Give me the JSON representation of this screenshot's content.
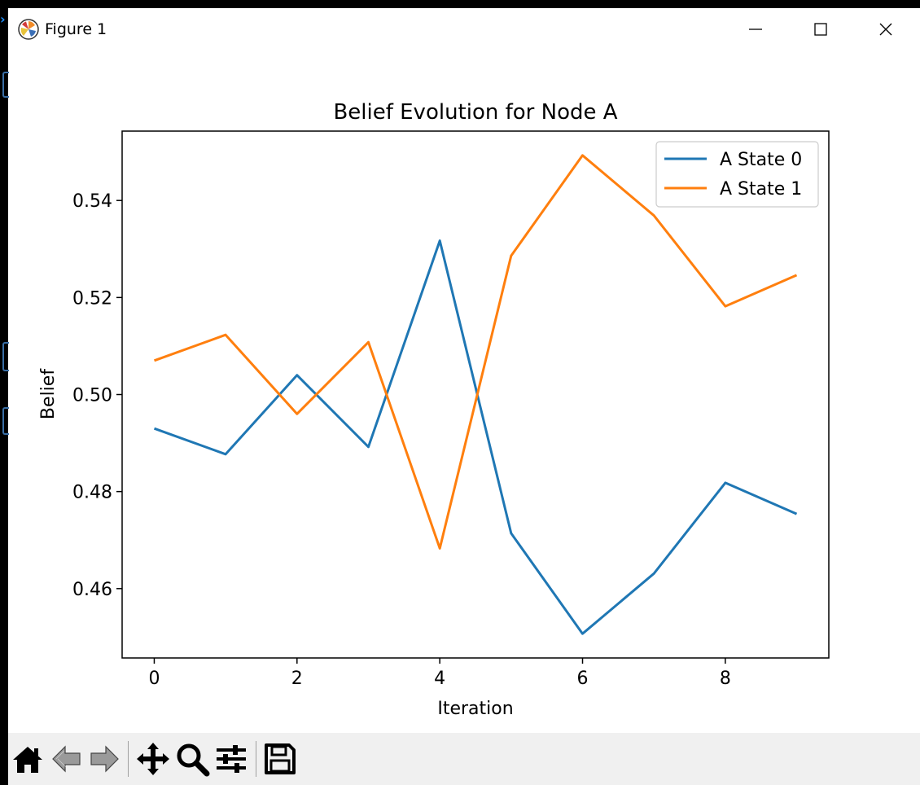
{
  "window": {
    "title": "Figure 1",
    "app_icon": "matplotlib-icon",
    "controls": [
      "minimize-icon",
      "maximize-icon",
      "close-icon"
    ]
  },
  "toolbar": {
    "buttons": [
      "home-icon",
      "back-icon",
      "forward-icon",
      "pan-icon",
      "zoom-icon",
      "configure-subplots-icon",
      "save-icon"
    ]
  },
  "chart_data": {
    "type": "line",
    "title": "Belief Evolution for Node A",
    "xlabel": "Iteration",
    "ylabel": "Belief",
    "x": [
      0,
      1,
      2,
      3,
      4,
      5,
      6,
      7,
      8,
      9
    ],
    "xlim": [
      -0.45,
      9.45
    ],
    "ylim": [
      0.4457,
      0.5543
    ],
    "xticks": [
      0,
      2,
      4,
      6,
      8
    ],
    "xtick_labels": [
      "0",
      "2",
      "4",
      "6",
      "8"
    ],
    "yticks": [
      0.46,
      0.48,
      0.5,
      0.52,
      0.54
    ],
    "ytick_labels": [
      "0.46",
      "0.48",
      "0.50",
      "0.52",
      "0.54"
    ],
    "grid": false,
    "legend_position": "top-right",
    "series": [
      {
        "name": "A State 0",
        "color": "#1f77b4",
        "values": [
          0.493,
          0.4877,
          0.504,
          0.4892,
          0.5317,
          0.4714,
          0.4507,
          0.4631,
          0.4818,
          0.4754
        ]
      },
      {
        "name": "A State 1",
        "color": "#ff7f0e",
        "values": [
          0.507,
          0.5123,
          0.496,
          0.5108,
          0.4683,
          0.5286,
          0.5493,
          0.5369,
          0.5182,
          0.5246
        ]
      }
    ]
  }
}
